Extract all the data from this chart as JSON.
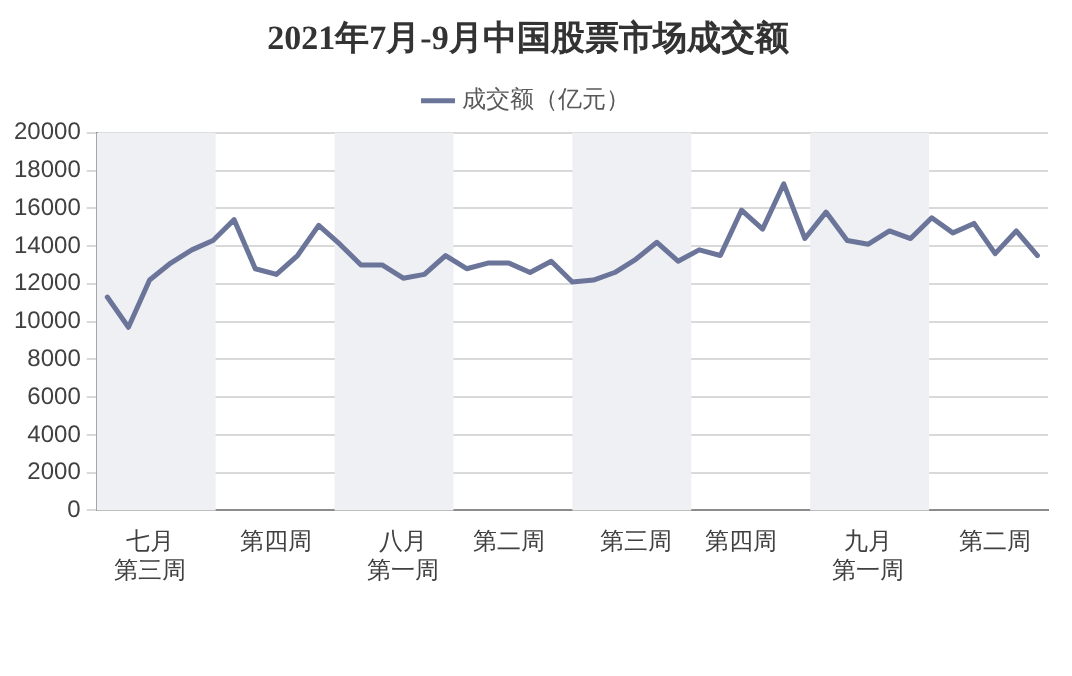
{
  "chart_data": {
    "type": "line",
    "title": "2021年7月-9月中国股票市场成交额",
    "categories": [
      null,
      null,
      "七月第三周",
      null,
      null,
      null,
      null,
      null,
      "第四周",
      null,
      null,
      null,
      null,
      null,
      "八月第一周",
      null,
      null,
      null,
      null,
      "第二周",
      null,
      null,
      null,
      null,
      null,
      "第三周",
      null,
      null,
      null,
      null,
      "第四周",
      null,
      null,
      null,
      null,
      null,
      "九月第一周",
      null,
      null,
      null,
      null,
      null,
      "第二周",
      null,
      null
    ],
    "series": [
      {
        "name": "成交额（亿元）",
        "color": "#6b7499",
        "values": [
          11300,
          9700,
          12200,
          13100,
          13800,
          14300,
          15400,
          12800,
          12500,
          13500,
          15100,
          14100,
          13000,
          13000,
          12300,
          12500,
          13500,
          12800,
          13100,
          13100,
          12600,
          13200,
          12100,
          12200,
          12600,
          13300,
          14200,
          13200,
          13800,
          13500,
          15900,
          14900,
          17300,
          14400,
          15800,
          14300,
          14100,
          14800,
          14400,
          15500,
          14700,
          15200,
          13600,
          14800,
          13500
        ]
      }
    ],
    "ylim": [
      0,
      20000
    ],
    "yticks": [
      0,
      2000,
      4000,
      6000,
      8000,
      10000,
      12000,
      14000,
      16000,
      18000,
      20000
    ],
    "grid": "y",
    "legend": "top",
    "marker": "none",
    "line_style": "solid"
  }
}
